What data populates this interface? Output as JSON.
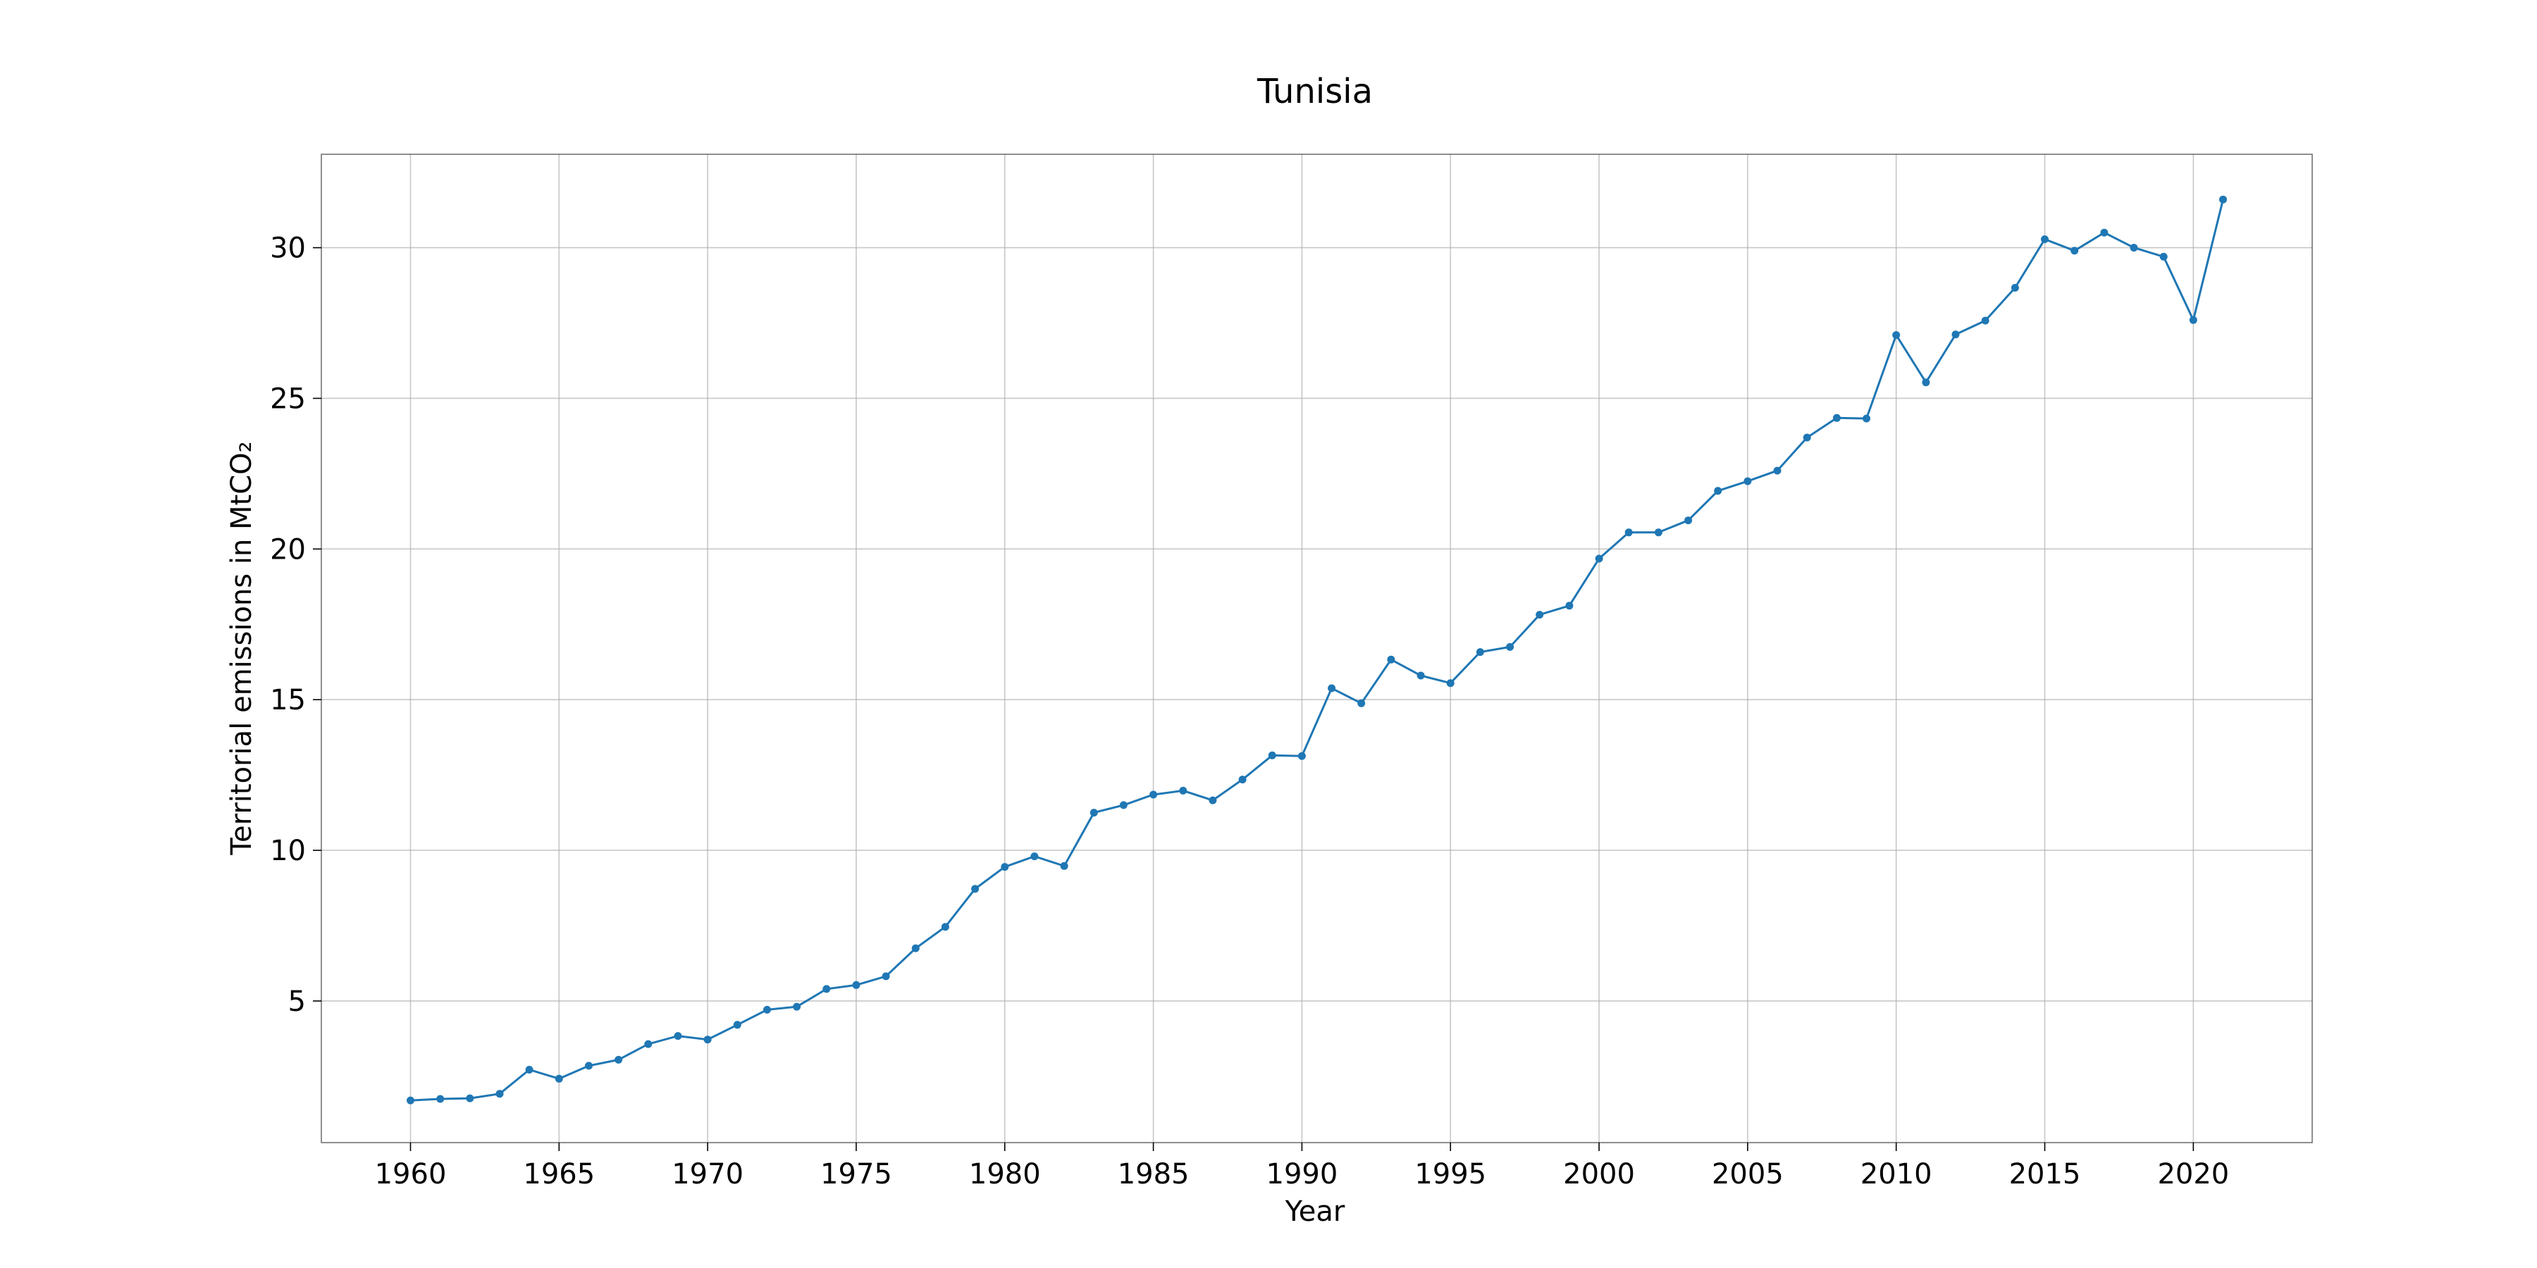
{
  "chart_data": {
    "type": "line",
    "title": "Tunisia",
    "xlabel": "Year",
    "ylabel": "Territorial emissions in MtCO₂",
    "xlim": [
      1957,
      2024
    ],
    "ylim": [
      0.3,
      33.1
    ],
    "grid": true,
    "xticks": [
      1960,
      1965,
      1970,
      1975,
      1980,
      1985,
      1990,
      1995,
      2000,
      2005,
      2010,
      2015,
      2020
    ],
    "yticks": [
      5,
      10,
      15,
      20,
      25,
      30
    ],
    "colors": {
      "series": "#1f77b4"
    },
    "series": [
      {
        "x": [
          1960,
          1961,
          1962,
          1963,
          1964,
          1965,
          1966,
          1967,
          1968,
          1969,
          1970,
          1971,
          1972,
          1973,
          1974,
          1975,
          1976,
          1977,
          1978,
          1979,
          1980,
          1981,
          1982,
          1983,
          1984,
          1985,
          1986,
          1987,
          1988,
          1989,
          1990,
          1991,
          1992,
          1993,
          1994,
          1995,
          1996,
          1997,
          1998,
          1999,
          2000,
          2001,
          2002,
          2003,
          2004,
          2005,
          2006,
          2007,
          2008,
          2009,
          2010,
          2011,
          2012,
          2013,
          2014,
          2015,
          2016,
          2017,
          2018,
          2019,
          2020,
          2021
        ],
        "y": [
          1.7,
          1.75,
          1.77,
          1.92,
          2.72,
          2.42,
          2.85,
          3.05,
          3.57,
          3.84,
          3.72,
          4.21,
          4.71,
          4.81,
          5.4,
          5.53,
          5.82,
          6.75,
          7.46,
          8.72,
          9.45,
          9.8,
          9.48,
          11.25,
          11.5,
          11.85,
          11.98,
          11.66,
          12.35,
          13.15,
          13.13,
          15.38,
          14.88,
          16.33,
          15.8,
          15.55,
          16.58,
          16.75,
          17.82,
          18.12,
          19.68,
          20.55,
          20.55,
          20.95,
          21.93,
          22.25,
          22.6,
          23.7,
          24.35,
          24.33,
          27.1,
          25.53,
          27.12,
          27.58,
          28.67,
          30.28,
          29.9,
          30.5,
          30.0,
          29.7,
          27.6,
          31.6
        ]
      }
    ]
  }
}
